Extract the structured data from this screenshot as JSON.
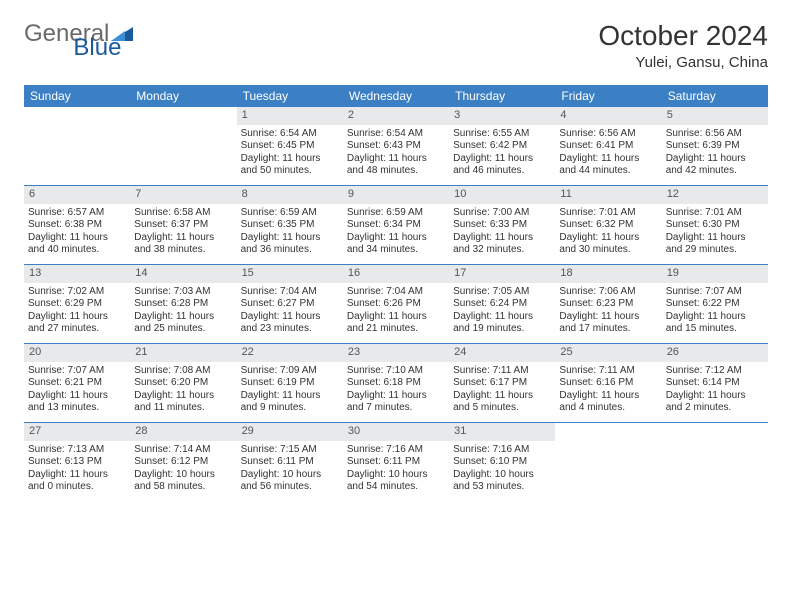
{
  "brand": {
    "part1": "General",
    "part2": "Blue"
  },
  "title": "October 2024",
  "subtitle": "Yulei, Gansu, China",
  "colors": {
    "header_bar": "#3b7fc4",
    "daynum_bg": "#e8e9eb",
    "text": "#333333",
    "logo_gray": "#6a6a6a",
    "logo_blue": "#1a5a9a"
  },
  "daysOfWeek": [
    "Sunday",
    "Monday",
    "Tuesday",
    "Wednesday",
    "Thursday",
    "Friday",
    "Saturday"
  ],
  "weeks": [
    [
      {
        "n": "",
        "sr": "",
        "ss": "",
        "dl": ""
      },
      {
        "n": "",
        "sr": "",
        "ss": "",
        "dl": ""
      },
      {
        "n": "1",
        "sr": "Sunrise: 6:54 AM",
        "ss": "Sunset: 6:45 PM",
        "dl": "Daylight: 11 hours and 50 minutes."
      },
      {
        "n": "2",
        "sr": "Sunrise: 6:54 AM",
        "ss": "Sunset: 6:43 PM",
        "dl": "Daylight: 11 hours and 48 minutes."
      },
      {
        "n": "3",
        "sr": "Sunrise: 6:55 AM",
        "ss": "Sunset: 6:42 PM",
        "dl": "Daylight: 11 hours and 46 minutes."
      },
      {
        "n": "4",
        "sr": "Sunrise: 6:56 AM",
        "ss": "Sunset: 6:41 PM",
        "dl": "Daylight: 11 hours and 44 minutes."
      },
      {
        "n": "5",
        "sr": "Sunrise: 6:56 AM",
        "ss": "Sunset: 6:39 PM",
        "dl": "Daylight: 11 hours and 42 minutes."
      }
    ],
    [
      {
        "n": "6",
        "sr": "Sunrise: 6:57 AM",
        "ss": "Sunset: 6:38 PM",
        "dl": "Daylight: 11 hours and 40 minutes."
      },
      {
        "n": "7",
        "sr": "Sunrise: 6:58 AM",
        "ss": "Sunset: 6:37 PM",
        "dl": "Daylight: 11 hours and 38 minutes."
      },
      {
        "n": "8",
        "sr": "Sunrise: 6:59 AM",
        "ss": "Sunset: 6:35 PM",
        "dl": "Daylight: 11 hours and 36 minutes."
      },
      {
        "n": "9",
        "sr": "Sunrise: 6:59 AM",
        "ss": "Sunset: 6:34 PM",
        "dl": "Daylight: 11 hours and 34 minutes."
      },
      {
        "n": "10",
        "sr": "Sunrise: 7:00 AM",
        "ss": "Sunset: 6:33 PM",
        "dl": "Daylight: 11 hours and 32 minutes."
      },
      {
        "n": "11",
        "sr": "Sunrise: 7:01 AM",
        "ss": "Sunset: 6:32 PM",
        "dl": "Daylight: 11 hours and 30 minutes."
      },
      {
        "n": "12",
        "sr": "Sunrise: 7:01 AM",
        "ss": "Sunset: 6:30 PM",
        "dl": "Daylight: 11 hours and 29 minutes."
      }
    ],
    [
      {
        "n": "13",
        "sr": "Sunrise: 7:02 AM",
        "ss": "Sunset: 6:29 PM",
        "dl": "Daylight: 11 hours and 27 minutes."
      },
      {
        "n": "14",
        "sr": "Sunrise: 7:03 AM",
        "ss": "Sunset: 6:28 PM",
        "dl": "Daylight: 11 hours and 25 minutes."
      },
      {
        "n": "15",
        "sr": "Sunrise: 7:04 AM",
        "ss": "Sunset: 6:27 PM",
        "dl": "Daylight: 11 hours and 23 minutes."
      },
      {
        "n": "16",
        "sr": "Sunrise: 7:04 AM",
        "ss": "Sunset: 6:26 PM",
        "dl": "Daylight: 11 hours and 21 minutes."
      },
      {
        "n": "17",
        "sr": "Sunrise: 7:05 AM",
        "ss": "Sunset: 6:24 PM",
        "dl": "Daylight: 11 hours and 19 minutes."
      },
      {
        "n": "18",
        "sr": "Sunrise: 7:06 AM",
        "ss": "Sunset: 6:23 PM",
        "dl": "Daylight: 11 hours and 17 minutes."
      },
      {
        "n": "19",
        "sr": "Sunrise: 7:07 AM",
        "ss": "Sunset: 6:22 PM",
        "dl": "Daylight: 11 hours and 15 minutes."
      }
    ],
    [
      {
        "n": "20",
        "sr": "Sunrise: 7:07 AM",
        "ss": "Sunset: 6:21 PM",
        "dl": "Daylight: 11 hours and 13 minutes."
      },
      {
        "n": "21",
        "sr": "Sunrise: 7:08 AM",
        "ss": "Sunset: 6:20 PM",
        "dl": "Daylight: 11 hours and 11 minutes."
      },
      {
        "n": "22",
        "sr": "Sunrise: 7:09 AM",
        "ss": "Sunset: 6:19 PM",
        "dl": "Daylight: 11 hours and 9 minutes."
      },
      {
        "n": "23",
        "sr": "Sunrise: 7:10 AM",
        "ss": "Sunset: 6:18 PM",
        "dl": "Daylight: 11 hours and 7 minutes."
      },
      {
        "n": "24",
        "sr": "Sunrise: 7:11 AM",
        "ss": "Sunset: 6:17 PM",
        "dl": "Daylight: 11 hours and 5 minutes."
      },
      {
        "n": "25",
        "sr": "Sunrise: 7:11 AM",
        "ss": "Sunset: 6:16 PM",
        "dl": "Daylight: 11 hours and 4 minutes."
      },
      {
        "n": "26",
        "sr": "Sunrise: 7:12 AM",
        "ss": "Sunset: 6:14 PM",
        "dl": "Daylight: 11 hours and 2 minutes."
      }
    ],
    [
      {
        "n": "27",
        "sr": "Sunrise: 7:13 AM",
        "ss": "Sunset: 6:13 PM",
        "dl": "Daylight: 11 hours and 0 minutes."
      },
      {
        "n": "28",
        "sr": "Sunrise: 7:14 AM",
        "ss": "Sunset: 6:12 PM",
        "dl": "Daylight: 10 hours and 58 minutes."
      },
      {
        "n": "29",
        "sr": "Sunrise: 7:15 AM",
        "ss": "Sunset: 6:11 PM",
        "dl": "Daylight: 10 hours and 56 minutes."
      },
      {
        "n": "30",
        "sr": "Sunrise: 7:16 AM",
        "ss": "Sunset: 6:11 PM",
        "dl": "Daylight: 10 hours and 54 minutes."
      },
      {
        "n": "31",
        "sr": "Sunrise: 7:16 AM",
        "ss": "Sunset: 6:10 PM",
        "dl": "Daylight: 10 hours and 53 minutes."
      },
      {
        "n": "",
        "sr": "",
        "ss": "",
        "dl": ""
      },
      {
        "n": "",
        "sr": "",
        "ss": "",
        "dl": ""
      }
    ]
  ]
}
